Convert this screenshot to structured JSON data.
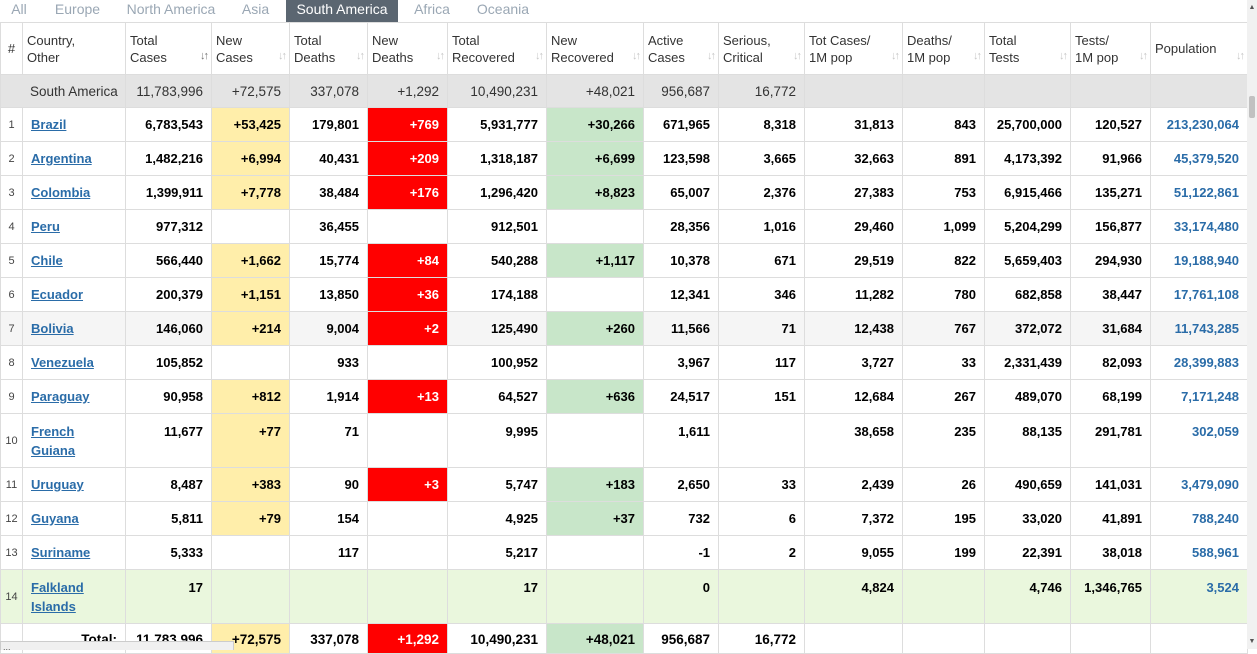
{
  "tabs": [
    "All",
    "Europe",
    "North America",
    "Asia",
    "South America",
    "Africa",
    "Oceania"
  ],
  "active_tab": "South America",
  "headers": [
    {
      "l1": "#",
      "l2": ""
    },
    {
      "l1": "Country,",
      "l2": "Other"
    },
    {
      "l1": "Total",
      "l2": "Cases"
    },
    {
      "l1": "New",
      "l2": "Cases"
    },
    {
      "l1": "Total",
      "l2": "Deaths"
    },
    {
      "l1": "New",
      "l2": "Deaths"
    },
    {
      "l1": "Total",
      "l2": "Recovered"
    },
    {
      "l1": "New",
      "l2": "Recovered"
    },
    {
      "l1": "Active",
      "l2": "Cases"
    },
    {
      "l1": "Serious,",
      "l2": "Critical"
    },
    {
      "l1": "Tot Cases/",
      "l2": "1M pop"
    },
    {
      "l1": "Deaths/",
      "l2": "1M pop"
    },
    {
      "l1": "Total",
      "l2": "Tests"
    },
    {
      "l1": "Tests/",
      "l2": "1M pop"
    },
    {
      "l1": "Population",
      "l2": ""
    }
  ],
  "summary": [
    "South America",
    "11,783,996",
    "+72,575",
    "337,078",
    "+1,292",
    "10,490,231",
    "+48,021",
    "956,687",
    "16,772",
    "",
    "",
    "",
    "",
    ""
  ],
  "rows": [
    [
      "1",
      "Brazil",
      "6,783,543",
      "+53,425",
      "179,801",
      "+769",
      "5,931,777",
      "+30,266",
      "671,965",
      "8,318",
      "31,813",
      "843",
      "25,700,000",
      "120,527",
      "213,230,064"
    ],
    [
      "2",
      "Argentina",
      "1,482,216",
      "+6,994",
      "40,431",
      "+209",
      "1,318,187",
      "+6,699",
      "123,598",
      "3,665",
      "32,663",
      "891",
      "4,173,392",
      "91,966",
      "45,379,520"
    ],
    [
      "3",
      "Colombia",
      "1,399,911",
      "+7,778",
      "38,484",
      "+176",
      "1,296,420",
      "+8,823",
      "65,007",
      "2,376",
      "27,383",
      "753",
      "6,915,466",
      "135,271",
      "51,122,861"
    ],
    [
      "4",
      "Peru",
      "977,312",
      "",
      "36,455",
      "",
      "912,501",
      "",
      "28,356",
      "1,016",
      "29,460",
      "1,099",
      "5,204,299",
      "156,877",
      "33,174,480"
    ],
    [
      "5",
      "Chile",
      "566,440",
      "+1,662",
      "15,774",
      "+84",
      "540,288",
      "+1,117",
      "10,378",
      "671",
      "29,519",
      "822",
      "5,659,403",
      "294,930",
      "19,188,940"
    ],
    [
      "6",
      "Ecuador",
      "200,379",
      "+1,151",
      "13,850",
      "+36",
      "174,188",
      "",
      "12,341",
      "346",
      "11,282",
      "780",
      "682,858",
      "38,447",
      "17,761,108"
    ],
    [
      "7",
      "Bolivia",
      "146,060",
      "+214",
      "9,004",
      "+2",
      "125,490",
      "+260",
      "11,566",
      "71",
      "12,438",
      "767",
      "372,072",
      "31,684",
      "11,743,285"
    ],
    [
      "8",
      "Venezuela",
      "105,852",
      "",
      "933",
      "",
      "100,952",
      "",
      "3,967",
      "117",
      "3,727",
      "33",
      "2,331,439",
      "82,093",
      "28,399,883"
    ],
    [
      "9",
      "Paraguay",
      "90,958",
      "+812",
      "1,914",
      "+13",
      "64,527",
      "+636",
      "24,517",
      "151",
      "12,684",
      "267",
      "489,070",
      "68,199",
      "7,171,248"
    ],
    [
      "10",
      "French Guiana",
      "11,677",
      "+77",
      "71",
      "",
      "9,995",
      "",
      "1,611",
      "",
      "38,658",
      "235",
      "88,135",
      "291,781",
      "302,059"
    ],
    [
      "11",
      "Uruguay",
      "8,487",
      "+383",
      "90",
      "+3",
      "5,747",
      "+183",
      "2,650",
      "33",
      "2,439",
      "26",
      "490,659",
      "141,031",
      "3,479,090"
    ],
    [
      "12",
      "Guyana",
      "5,811",
      "+79",
      "154",
      "",
      "4,925",
      "+37",
      "732",
      "6",
      "7,372",
      "195",
      "33,020",
      "41,891",
      "788,240"
    ],
    [
      "13",
      "Suriname",
      "5,333",
      "",
      "117",
      "",
      "5,217",
      "",
      "-1",
      "2",
      "9,055",
      "199",
      "22,391",
      "38,018",
      "588,961"
    ],
    [
      "14",
      "Falkland Islands",
      "17",
      "",
      "",
      "",
      "17",
      "",
      "0",
      "",
      "4,824",
      "",
      "4,746",
      "1,346,765",
      "3,524"
    ]
  ],
  "total_row": [
    "",
    "Total:",
    "11,783,996",
    "+72,575",
    "337,078",
    "+1,292",
    "10,490,231",
    "+48,021",
    "956,687",
    "16,772",
    "",
    "",
    "",
    "",
    ""
  ],
  "status_url": "...",
  "colors": {
    "tab_active": "#5b6671",
    "new_cases": "#ffeeaa",
    "new_deaths": "#ff0000",
    "new_recovered": "#c8e6c9",
    "link": "#2a6ca8",
    "summary": "#e4e4e4",
    "falkland_row": "#eaf7dd"
  },
  "icons": {
    "sort": "sort-arrows-icon",
    "scroll_up": "scroll-up-icon",
    "scroll_down": "scroll-down-icon"
  }
}
